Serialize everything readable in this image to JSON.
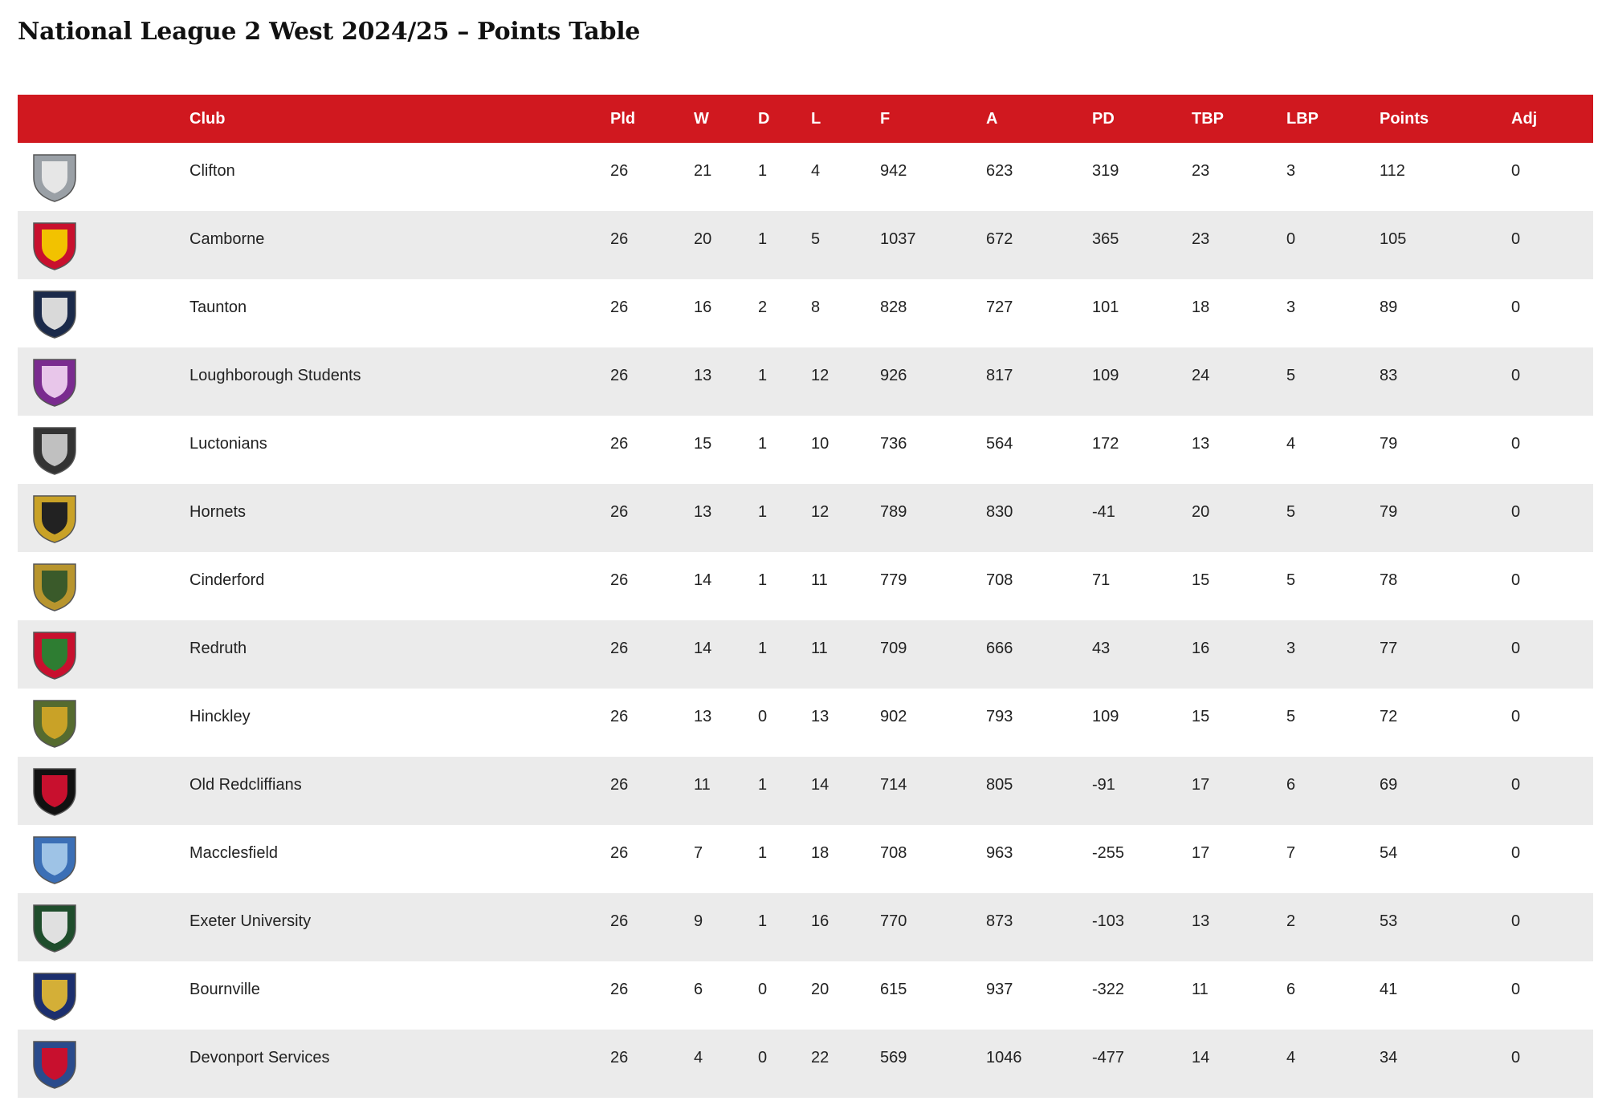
{
  "page": {
    "title": "National League 2 West 2024/25 – Points Table"
  },
  "table": {
    "headers": {
      "logo": "",
      "club": "Club",
      "pld": "Pld",
      "w": "W",
      "d": "D",
      "l": "L",
      "f": "F",
      "a": "A",
      "pd": "PD",
      "tbp": "TBP",
      "lbp": "LBP",
      "points": "Points",
      "adj": "Adj"
    },
    "rows": [
      {
        "club": "Clifton",
        "pld": "26",
        "w": "21",
        "d": "1",
        "l": "4",
        "f": "942",
        "a": "623",
        "pd": "319",
        "tbp": "23",
        "lbp": "3",
        "points": "112",
        "adj": "0",
        "logo_icon": "clifton-crest-icon"
      },
      {
        "club": "Camborne",
        "pld": "26",
        "w": "20",
        "d": "1",
        "l": "5",
        "f": "1037",
        "a": "672",
        "pd": "365",
        "tbp": "23",
        "lbp": "0",
        "points": "105",
        "adj": "0",
        "logo_icon": "camborne-crest-icon"
      },
      {
        "club": "Taunton",
        "pld": "26",
        "w": "16",
        "d": "2",
        "l": "8",
        "f": "828",
        "a": "727",
        "pd": "101",
        "tbp": "18",
        "lbp": "3",
        "points": "89",
        "adj": "0",
        "logo_icon": "taunton-crest-icon"
      },
      {
        "club": "Loughborough Students",
        "pld": "26",
        "w": "13",
        "d": "1",
        "l": "12",
        "f": "926",
        "a": "817",
        "pd": "109",
        "tbp": "24",
        "lbp": "5",
        "points": "83",
        "adj": "0",
        "logo_icon": "loughborough-crest-icon"
      },
      {
        "club": "Luctonians",
        "pld": "26",
        "w": "15",
        "d": "1",
        "l": "10",
        "f": "736",
        "a": "564",
        "pd": "172",
        "tbp": "13",
        "lbp": "4",
        "points": "79",
        "adj": "0",
        "logo_icon": "luctonians-crest-icon"
      },
      {
        "club": "Hornets",
        "pld": "26",
        "w": "13",
        "d": "1",
        "l": "12",
        "f": "789",
        "a": "830",
        "pd": "-41",
        "tbp": "20",
        "lbp": "5",
        "points": "79",
        "adj": "0",
        "logo_icon": "hornets-crest-icon"
      },
      {
        "club": "Cinderford",
        "pld": "26",
        "w": "14",
        "d": "1",
        "l": "11",
        "f": "779",
        "a": "708",
        "pd": "71",
        "tbp": "15",
        "lbp": "5",
        "points": "78",
        "adj": "0",
        "logo_icon": "cinderford-crest-icon"
      },
      {
        "club": "Redruth",
        "pld": "26",
        "w": "14",
        "d": "1",
        "l": "11",
        "f": "709",
        "a": "666",
        "pd": "43",
        "tbp": "16",
        "lbp": "3",
        "points": "77",
        "adj": "0",
        "logo_icon": "redruth-crest-icon"
      },
      {
        "club": "Hinckley",
        "pld": "26",
        "w": "13",
        "d": "0",
        "l": "13",
        "f": "902",
        "a": "793",
        "pd": "109",
        "tbp": "15",
        "lbp": "5",
        "points": "72",
        "adj": "0",
        "logo_icon": "hinckley-crest-icon"
      },
      {
        "club": "Old Redcliffians",
        "pld": "26",
        "w": "11",
        "d": "1",
        "l": "14",
        "f": "714",
        "a": "805",
        "pd": "-91",
        "tbp": "17",
        "lbp": "6",
        "points": "69",
        "adj": "0",
        "logo_icon": "old-redcliffians-crest-icon"
      },
      {
        "club": "Macclesfield",
        "pld": "26",
        "w": "7",
        "d": "1",
        "l": "18",
        "f": "708",
        "a": "963",
        "pd": "-255",
        "tbp": "17",
        "lbp": "7",
        "points": "54",
        "adj": "0",
        "logo_icon": "macclesfield-crest-icon"
      },
      {
        "club": "Exeter University",
        "pld": "26",
        "w": "9",
        "d": "1",
        "l": "16",
        "f": "770",
        "a": "873",
        "pd": "-103",
        "tbp": "13",
        "lbp": "2",
        "points": "53",
        "adj": "0",
        "logo_icon": "exeter-university-crest-icon"
      },
      {
        "club": "Bournville",
        "pld": "26",
        "w": "6",
        "d": "0",
        "l": "20",
        "f": "615",
        "a": "937",
        "pd": "-322",
        "tbp": "11",
        "lbp": "6",
        "points": "41",
        "adj": "0",
        "logo_icon": "bournville-crest-icon"
      },
      {
        "club": "Devonport Services",
        "pld": "26",
        "w": "4",
        "d": "0",
        "l": "22",
        "f": "569",
        "a": "1046",
        "pd": "-477",
        "tbp": "14",
        "lbp": "4",
        "points": "34",
        "adj": "0",
        "logo_icon": "devonport-services-crest-icon"
      }
    ]
  },
  "colors": {
    "header_bg": "#d0181f",
    "header_text": "#ffffff",
    "stripe": "#ebebeb",
    "text": "#222222"
  }
}
